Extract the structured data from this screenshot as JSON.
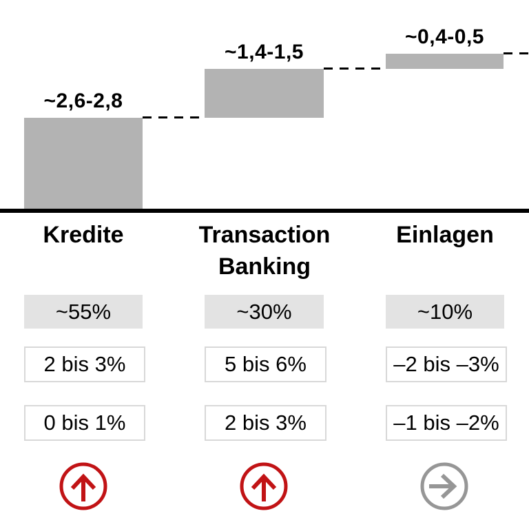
{
  "chart_data": {
    "type": "bar",
    "subtype": "waterfall-buildup",
    "title": "",
    "categories": [
      "Kredite",
      "Transaction Banking",
      "Einlagen"
    ],
    "bars": [
      {
        "label": "~2,6-2,8",
        "range_low": 2.6,
        "range_high": 2.8,
        "start": 0,
        "end": 2.7
      },
      {
        "label": "~1,4-1,5",
        "range_low": 1.4,
        "range_high": 1.5,
        "start": 2.7,
        "end": 4.15
      },
      {
        "label": "~0,4-0,5",
        "range_low": 0.4,
        "range_high": 0.5,
        "start": 4.15,
        "end": 4.6
      }
    ],
    "baseline_value": 0,
    "connector_style": "dashed",
    "bar_color": "#b3b3b3",
    "axis_color": "#000000",
    "legend": "none",
    "grid": "off"
  },
  "table": {
    "headers": [
      "Kredite",
      "Transaction Banking",
      "Einlagen"
    ],
    "rows": [
      {
        "name": "share",
        "values": [
          "~55%",
          "~30%",
          "~10%"
        ]
      },
      {
        "name": "range-1",
        "values": [
          "2 bis 3%",
          "5 bis 6%",
          "–2 bis –3%"
        ]
      },
      {
        "name": "range-2",
        "values": [
          "0 bis 1%",
          "2 bis 3%",
          "–1 bis –2%"
        ]
      }
    ],
    "trends": [
      {
        "direction": "up",
        "color": "#c11315"
      },
      {
        "direction": "up",
        "color": "#c11315"
      },
      {
        "direction": "right",
        "color": "#969696"
      }
    ],
    "share_box_color": "#e3e3e3",
    "range_box_border_color": "#d8d8d8"
  }
}
